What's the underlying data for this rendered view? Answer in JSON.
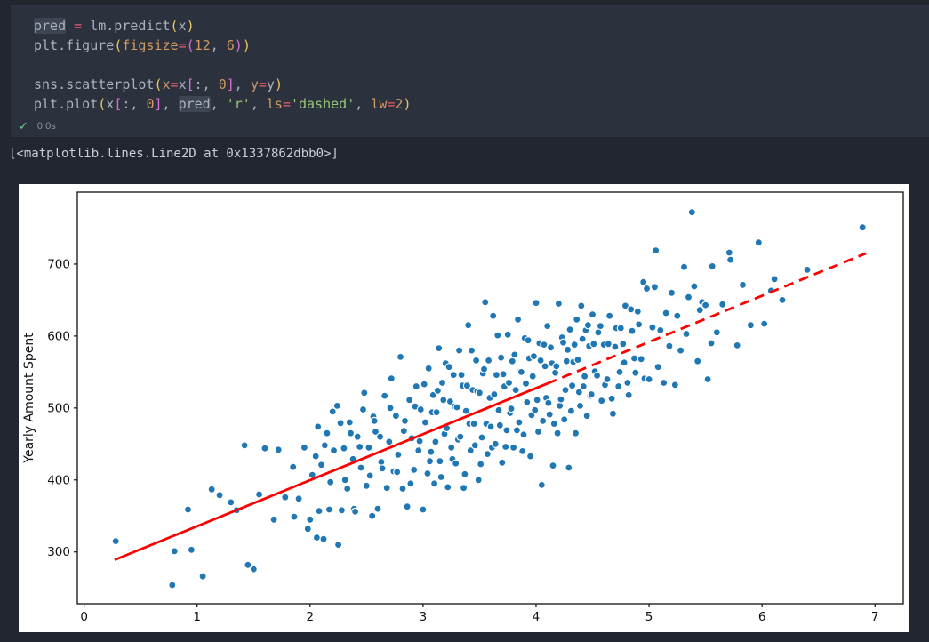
{
  "editor": {
    "lines": [
      [
        {
          "t": "pred",
          "c": "v",
          "h": 1
        },
        {
          "t": " ",
          "c": "v"
        },
        {
          "t": "=",
          "c": "o"
        },
        {
          "t": " lm.predict",
          "c": "v"
        },
        {
          "t": "(",
          "c": "p1"
        },
        {
          "t": "x",
          "c": "v"
        },
        {
          "t": ")",
          "c": "p1"
        }
      ],
      [
        {
          "t": "plt.figure",
          "c": "v"
        },
        {
          "t": "(",
          "c": "p1"
        },
        {
          "t": "figsize",
          "c": "n"
        },
        {
          "t": "=",
          "c": "o"
        },
        {
          "t": "(",
          "c": "p2"
        },
        {
          "t": "12",
          "c": "n"
        },
        {
          "t": ", ",
          "c": "v"
        },
        {
          "t": "6",
          "c": "n"
        },
        {
          "t": ")",
          "c": "p2"
        },
        {
          "t": ")",
          "c": "p1"
        }
      ],
      [],
      [
        {
          "t": "sns.scatterplot",
          "c": "v"
        },
        {
          "t": "(",
          "c": "p1"
        },
        {
          "t": "x",
          "c": "n"
        },
        {
          "t": "=",
          "c": "o"
        },
        {
          "t": "x",
          "c": "v"
        },
        {
          "t": "[",
          "c": "p2"
        },
        {
          "t": ":, ",
          "c": "v"
        },
        {
          "t": "0",
          "c": "n"
        },
        {
          "t": "]",
          "c": "p2"
        },
        {
          "t": ", ",
          "c": "v"
        },
        {
          "t": "y",
          "c": "n"
        },
        {
          "t": "=",
          "c": "o"
        },
        {
          "t": "y",
          "c": "v"
        },
        {
          "t": ")",
          "c": "p1"
        }
      ],
      [
        {
          "t": "plt.plot",
          "c": "v"
        },
        {
          "t": "(",
          "c": "p1"
        },
        {
          "t": "x",
          "c": "v"
        },
        {
          "t": "[",
          "c": "p2"
        },
        {
          "t": ":, ",
          "c": "v"
        },
        {
          "t": "0",
          "c": "n"
        },
        {
          "t": "]",
          "c": "p2"
        },
        {
          "t": ", ",
          "c": "v"
        },
        {
          "t": "pred",
          "c": "v",
          "h": 1
        },
        {
          "t": ", ",
          "c": "v"
        },
        {
          "t": "'r'",
          "c": "s"
        },
        {
          "t": ", ",
          "c": "v"
        },
        {
          "t": "ls",
          "c": "n"
        },
        {
          "t": "=",
          "c": "o"
        },
        {
          "t": "'dashed'",
          "c": "s"
        },
        {
          "t": ", ",
          "c": "v"
        },
        {
          "t": "lw",
          "c": "n"
        },
        {
          "t": "=",
          "c": "o"
        },
        {
          "t": "2",
          "c": "n"
        },
        {
          "t": ")",
          "c": "p1"
        }
      ]
    ],
    "status": {
      "icon_glyph": "✓",
      "time": "0.0s"
    }
  },
  "output_text": "[<matplotlib.lines.Line2D at 0x1337862dbb0>]",
  "colors": {
    "pagebg": "#22262e",
    "cellbg": "#2c323d",
    "fg": "#abb2bf",
    "op": "#ef596f",
    "num": "#d19a66",
    "str": "#98c379",
    "b1": "#eac562",
    "b2": "#d670d6",
    "hl": "#3d4452",
    "check": "#73c991",
    "timefg": "#8c94a3",
    "outfg": "#c9cfd9"
  },
  "chart_data": {
    "type": "scatter",
    "title": "",
    "xlabel": "",
    "ylabel": "Yearly Amount Spent",
    "xlim": [
      -0.06,
      7.25
    ],
    "ylim": [
      228,
      800
    ],
    "xticks": [
      0,
      1,
      2,
      3,
      4,
      5,
      6,
      7
    ],
    "yticks": [
      300,
      400,
      500,
      600,
      700
    ],
    "grid": false,
    "legend": "none",
    "point_color": "#1f77b4",
    "point_edge_color": "#ffffff",
    "regression_line": {
      "color": "#ff0000",
      "width": 2.8,
      "dash_pattern": "11 7",
      "solid_segment": [
        [
          0.27,
          289
        ],
        [
          4.1,
          534
        ]
      ],
      "dashed_segment": [
        [
          4.1,
          534
        ],
        [
          6.92,
          715
        ]
      ]
    },
    "points": [
      [
        0.28,
        315
      ],
      [
        0.78,
        254
      ],
      [
        0.8,
        301
      ],
      [
        0.92,
        359
      ],
      [
        0.95,
        303
      ],
      [
        1.05,
        266
      ],
      [
        1.13,
        387
      ],
      [
        1.2,
        379
      ],
      [
        1.3,
        369
      ],
      [
        1.35,
        358
      ],
      [
        1.42,
        448
      ],
      [
        1.45,
        282
      ],
      [
        1.5,
        276
      ],
      [
        1.55,
        380
      ],
      [
        1.6,
        444
      ],
      [
        1.68,
        345
      ],
      [
        1.72,
        442
      ],
      [
        1.78,
        376
      ],
      [
        1.85,
        418
      ],
      [
        1.86,
        349
      ],
      [
        1.9,
        374
      ],
      [
        1.95,
        445
      ],
      [
        1.98,
        332
      ],
      [
        2.0,
        345
      ],
      [
        2.02,
        407
      ],
      [
        2.05,
        433
      ],
      [
        2.06,
        320
      ],
      [
        2.07,
        474
      ],
      [
        2.08,
        357
      ],
      [
        2.1,
        421
      ],
      [
        2.12,
        318
      ],
      [
        2.13,
        448
      ],
      [
        2.15,
        465
      ],
      [
        2.17,
        359
      ],
      [
        2.18,
        397
      ],
      [
        2.2,
        495
      ],
      [
        2.21,
        441
      ],
      [
        2.24,
        503
      ],
      [
        2.25,
        310
      ],
      [
        2.27,
        479
      ],
      [
        2.28,
        358
      ],
      [
        2.3,
        444
      ],
      [
        2.31,
        400
      ],
      [
        2.33,
        388
      ],
      [
        2.35,
        480
      ],
      [
        2.36,
        465
      ],
      [
        2.38,
        429
      ],
      [
        2.39,
        360
      ],
      [
        2.4,
        356
      ],
      [
        2.42,
        460
      ],
      [
        2.44,
        446
      ],
      [
        2.45,
        417
      ],
      [
        2.47,
        498
      ],
      [
        2.48,
        521
      ],
      [
        2.5,
        392
      ],
      [
        2.52,
        445
      ],
      [
        2.53,
        406
      ],
      [
        2.55,
        350
      ],
      [
        2.56,
        488
      ],
      [
        2.57,
        482
      ],
      [
        2.58,
        467
      ],
      [
        2.6,
        360
      ],
      [
        2.62,
        460
      ],
      [
        2.63,
        425
      ],
      [
        2.64,
        416
      ],
      [
        2.66,
        517
      ],
      [
        2.68,
        389
      ],
      [
        2.7,
        453
      ],
      [
        2.71,
        500
      ],
      [
        2.72,
        541
      ],
      [
        2.74,
        412
      ],
      [
        2.76,
        489
      ],
      [
        2.77,
        411
      ],
      [
        2.78,
        435
      ],
      [
        2.8,
        571
      ],
      [
        2.82,
        388
      ],
      [
        2.83,
        468
      ],
      [
        2.84,
        482
      ],
      [
        2.86,
        363
      ],
      [
        2.88,
        511
      ],
      [
        2.89,
        395
      ],
      [
        2.9,
        458
      ],
      [
        2.92,
        414
      ],
      [
        2.93,
        502
      ],
      [
        2.94,
        530
      ],
      [
        2.96,
        441
      ],
      [
        2.97,
        454
      ],
      [
        2.98,
        498
      ],
      [
        3.0,
        359
      ],
      [
        3.01,
        533
      ],
      [
        3.02,
        480
      ],
      [
        3.04,
        409
      ],
      [
        3.05,
        555
      ],
      [
        3.06,
        426
      ],
      [
        3.07,
        439
      ],
      [
        3.08,
        494
      ],
      [
        3.09,
        518
      ],
      [
        3.1,
        395
      ],
      [
        3.11,
        453
      ],
      [
        3.12,
        494
      ],
      [
        3.13,
        524
      ],
      [
        3.14,
        583
      ],
      [
        3.15,
        426
      ],
      [
        3.16,
        404
      ],
      [
        3.17,
        535
      ],
      [
        3.18,
        511
      ],
      [
        3.19,
        464
      ],
      [
        3.2,
        562
      ],
      [
        3.21,
        472
      ],
      [
        3.22,
        390
      ],
      [
        3.23,
        557
      ],
      [
        3.24,
        509
      ],
      [
        3.25,
        445
      ],
      [
        3.26,
        429
      ],
      [
        3.27,
        546
      ],
      [
        3.28,
        502
      ],
      [
        3.29,
        423
      ],
      [
        3.3,
        501
      ],
      [
        3.31,
        456
      ],
      [
        3.32,
        580
      ],
      [
        3.33,
        460
      ],
      [
        3.34,
        546
      ],
      [
        3.35,
        531
      ],
      [
        3.36,
        389
      ],
      [
        3.37,
        408
      ],
      [
        3.38,
        496
      ],
      [
        3.39,
        531
      ],
      [
        3.4,
        615
      ],
      [
        3.41,
        478
      ],
      [
        3.42,
        441
      ],
      [
        3.43,
        580
      ],
      [
        3.44,
        525
      ],
      [
        3.45,
        478
      ],
      [
        3.46,
        448
      ],
      [
        3.47,
        566
      ],
      [
        3.48,
        523
      ],
      [
        3.49,
        400
      ],
      [
        3.5,
        521
      ],
      [
        3.51,
        422
      ],
      [
        3.52,
        459
      ],
      [
        3.53,
        548
      ],
      [
        3.54,
        554
      ],
      [
        3.55,
        647
      ],
      [
        3.56,
        478
      ],
      [
        3.57,
        436
      ],
      [
        3.58,
        566
      ],
      [
        3.59,
        514
      ],
      [
        3.6,
        474
      ],
      [
        3.61,
        445
      ],
      [
        3.62,
        628
      ],
      [
        3.63,
        519
      ],
      [
        3.64,
        450
      ],
      [
        3.65,
        546
      ],
      [
        3.66,
        601
      ],
      [
        3.67,
        497
      ],
      [
        3.68,
        476
      ],
      [
        3.69,
        570
      ],
      [
        3.7,
        424
      ],
      [
        3.71,
        547
      ],
      [
        3.72,
        530
      ],
      [
        3.73,
        446
      ],
      [
        3.74,
        469
      ],
      [
        3.75,
        602
      ],
      [
        3.76,
        535
      ],
      [
        3.77,
        493
      ],
      [
        3.78,
        499
      ],
      [
        3.79,
        565
      ],
      [
        3.8,
        445
      ],
      [
        3.81,
        574
      ],
      [
        3.82,
        525
      ],
      [
        3.83,
        469
      ],
      [
        3.84,
        623
      ],
      [
        3.85,
        480
      ],
      [
        3.86,
        551
      ],
      [
        3.87,
        550
      ],
      [
        3.88,
        440
      ],
      [
        3.89,
        463
      ],
      [
        3.9,
        597
      ],
      [
        3.91,
        534
      ],
      [
        3.92,
        508
      ],
      [
        3.93,
        594
      ],
      [
        3.94,
        569
      ],
      [
        3.95,
        433
      ],
      [
        3.96,
        490
      ],
      [
        3.97,
        544
      ],
      [
        3.98,
        572
      ],
      [
        3.99,
        497
      ],
      [
        4.0,
        646
      ],
      [
        4.01,
        511
      ],
      [
        4.02,
        467
      ],
      [
        4.03,
        590
      ],
      [
        4.04,
        566
      ],
      [
        4.05,
        393
      ],
      [
        4.06,
        482
      ],
      [
        4.07,
        588
      ],
      [
        4.08,
        558
      ],
      [
        4.09,
        514
      ],
      [
        4.1,
        614
      ],
      [
        4.11,
        507
      ],
      [
        4.12,
        491
      ],
      [
        4.13,
        584
      ],
      [
        4.14,
        562
      ],
      [
        4.15,
        420
      ],
      [
        4.16,
        478
      ],
      [
        4.17,
        549
      ],
      [
        4.18,
        558
      ],
      [
        4.19,
        465
      ],
      [
        4.2,
        645
      ],
      [
        4.21,
        503
      ],
      [
        4.22,
        512
      ],
      [
        4.23,
        598
      ],
      [
        4.24,
        591
      ],
      [
        4.25,
        484
      ],
      [
        4.26,
        525
      ],
      [
        4.27,
        565
      ],
      [
        4.28,
        581
      ],
      [
        4.29,
        417
      ],
      [
        4.3,
        609
      ],
      [
        4.31,
        496
      ],
      [
        4.32,
        531
      ],
      [
        4.33,
        564
      ],
      [
        4.34,
        588
      ],
      [
        4.35,
        465
      ],
      [
        4.36,
        623
      ],
      [
        4.37,
        567
      ],
      [
        4.38,
        522
      ],
      [
        4.39,
        503
      ],
      [
        4.4,
        642
      ],
      [
        4.41,
        596
      ],
      [
        4.42,
        530
      ],
      [
        4.43,
        544
      ],
      [
        4.44,
        608
      ],
      [
        4.45,
        489
      ],
      [
        4.46,
        615
      ],
      [
        4.47,
        586
      ],
      [
        4.48,
        517
      ],
      [
        4.49,
        519
      ],
      [
        4.5,
        630
      ],
      [
        4.51,
        589
      ],
      [
        4.52,
        551
      ],
      [
        4.54,
        545
      ],
      [
        4.55,
        605
      ],
      [
        4.57,
        614
      ],
      [
        4.58,
        510
      ],
      [
        4.6,
        588
      ],
      [
        4.61,
        532
      ],
      [
        4.63,
        540
      ],
      [
        4.64,
        589
      ],
      [
        4.65,
        628
      ],
      [
        4.67,
        513
      ],
      [
        4.68,
        492
      ],
      [
        4.7,
        585
      ],
      [
        4.71,
        611
      ],
      [
        4.73,
        530
      ],
      [
        4.74,
        550
      ],
      [
        4.75,
        611
      ],
      [
        4.77,
        589
      ],
      [
        4.78,
        563
      ],
      [
        4.79,
        642
      ],
      [
        4.81,
        535
      ],
      [
        4.82,
        518
      ],
      [
        4.84,
        637
      ],
      [
        4.85,
        607
      ],
      [
        4.87,
        569
      ],
      [
        4.88,
        549
      ],
      [
        4.9,
        634
      ],
      [
        4.91,
        616
      ],
      [
        4.93,
        568
      ],
      [
        4.95,
        675
      ],
      [
        4.96,
        541
      ],
      [
        4.98,
        666
      ],
      [
        5.0,
        540
      ],
      [
        5.03,
        612
      ],
      [
        5.05,
        668
      ],
      [
        5.06,
        719
      ],
      [
        5.08,
        557
      ],
      [
        5.1,
        608
      ],
      [
        5.13,
        535
      ],
      [
        5.15,
        632
      ],
      [
        5.18,
        586
      ],
      [
        5.2,
        660
      ],
      [
        5.23,
        532
      ],
      [
        5.25,
        628
      ],
      [
        5.28,
        580
      ],
      [
        5.31,
        696
      ],
      [
        5.33,
        603
      ],
      [
        5.35,
        654
      ],
      [
        5.38,
        772
      ],
      [
        5.4,
        669
      ],
      [
        5.43,
        565
      ],
      [
        5.45,
        636
      ],
      [
        5.47,
        647
      ],
      [
        5.5,
        643
      ],
      [
        5.52,
        540
      ],
      [
        5.55,
        590
      ],
      [
        5.56,
        697
      ],
      [
        5.6,
        605
      ],
      [
        5.65,
        644
      ],
      [
        5.71,
        716
      ],
      [
        5.72,
        706
      ],
      [
        5.78,
        587
      ],
      [
        5.83,
        671
      ],
      [
        5.9,
        615
      ],
      [
        5.97,
        730
      ],
      [
        6.02,
        617
      ],
      [
        6.08,
        663
      ],
      [
        6.11,
        679
      ],
      [
        6.18,
        650
      ],
      [
        6.4,
        692
      ],
      [
        6.89,
        751
      ]
    ]
  }
}
